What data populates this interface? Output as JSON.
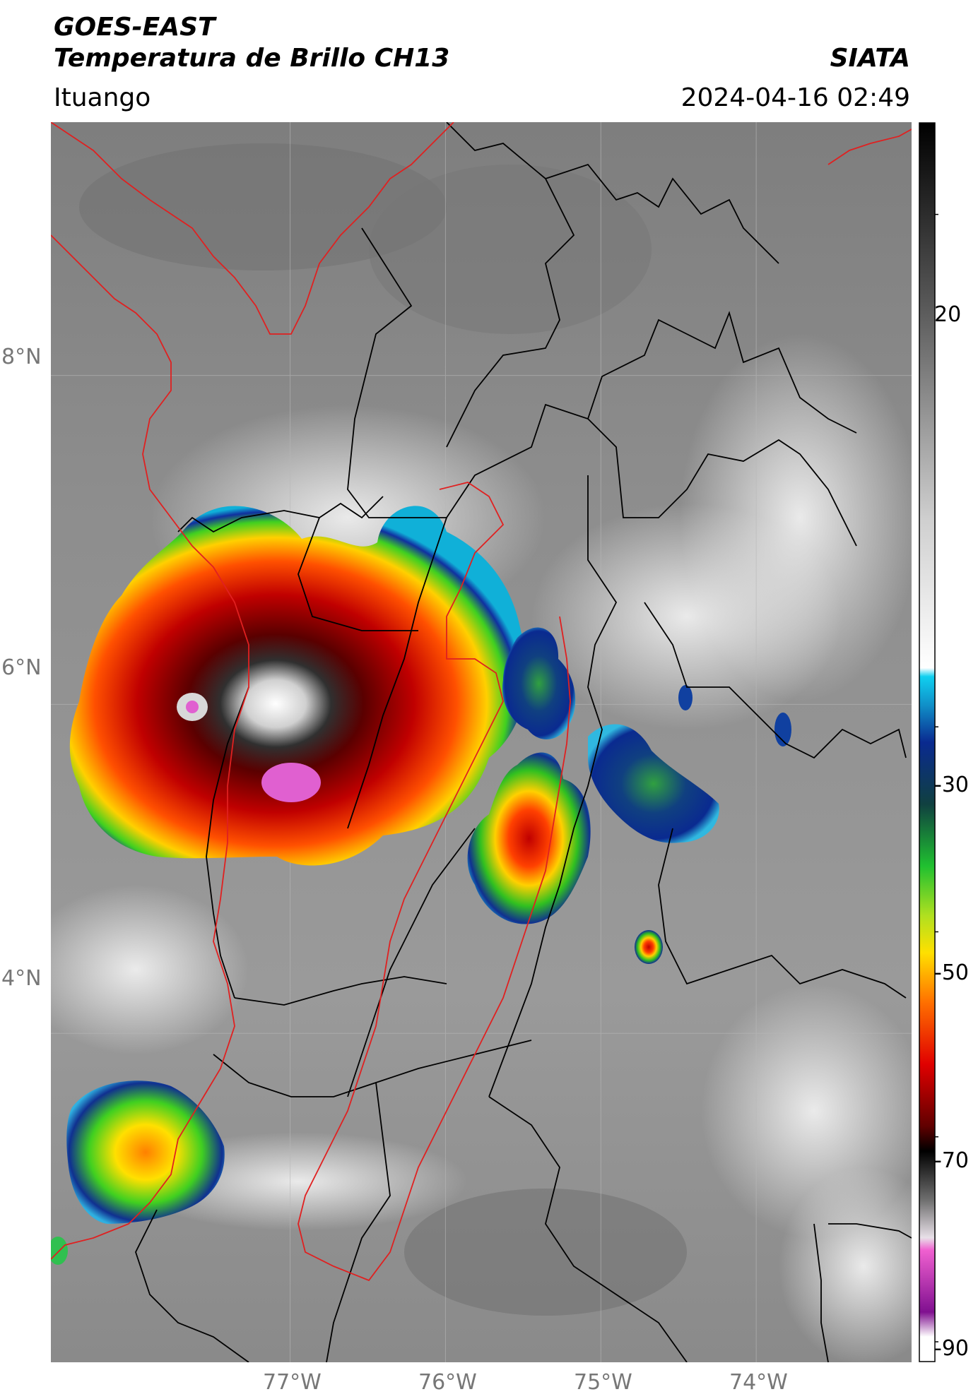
{
  "header": {
    "satellite": "GOES-EAST",
    "product": "Temperatura de Brillo CH13",
    "organization": "SIATA",
    "location": "Ituango",
    "timestamp": "2024-04-16 02:49"
  },
  "map": {
    "latitude_labels": [
      "8°N",
      "6°N",
      "4°N"
    ],
    "longitude_labels": [
      "77°W",
      "76°W",
      "75°W",
      "74°W"
    ],
    "extent": {
      "lon": [
        -78.54,
        -73.0
      ],
      "lat": [
        2.0,
        9.54
      ]
    },
    "colors": {
      "background_gray": "#8a8a8a",
      "country_border": "#e02020",
      "region_border": "#000000"
    }
  },
  "colorbar": {
    "labels": [
      "20",
      "-30",
      "-50",
      "-70",
      "-90"
    ],
    "range": [
      -92,
      29
    ]
  }
}
